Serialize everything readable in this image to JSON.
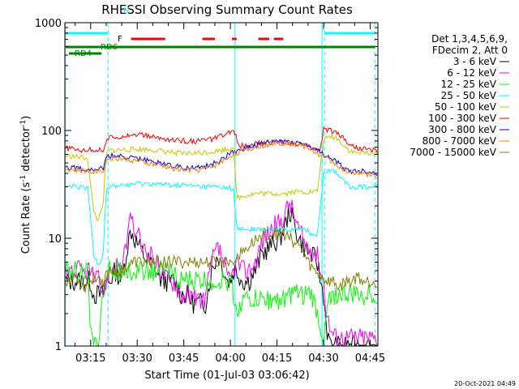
{
  "chart_data": {
    "type": "line",
    "title": "RHESSI Observing Summary Count Rates",
    "xlabel": "Start Time (01-Jul-03 03:06:42)",
    "ylabel_main": "Count Rate (s",
    "ylabel_sup1": "-1",
    "ylabel_mid": " detector",
    "ylabel_sup2": "-1",
    "ylabel_end": ")",
    "x_start_min": 186.7,
    "x_end_min": 287.5,
    "y_scale": "log",
    "ylim": [
      1,
      1000
    ],
    "x_ticks": [
      {
        "min": 195,
        "label": "03:15"
      },
      {
        "min": 210,
        "label": "03:30"
      },
      {
        "min": 225,
        "label": "03:45"
      },
      {
        "min": 240,
        "label": "04:00"
      },
      {
        "min": 255,
        "label": "04:15"
      },
      {
        "min": 270,
        "label": "04:30"
      },
      {
        "min": 285,
        "label": "04:45"
      }
    ],
    "y_ticks": [
      {
        "value": 1,
        "label": "1"
      },
      {
        "value": 10,
        "label": "10"
      },
      {
        "value": 100,
        "label": "100"
      },
      {
        "value": 1000,
        "label": "1000"
      }
    ],
    "legend": {
      "header1": "Det 1,3,4,5,6,9,",
      "header2": "FDecim 2, Att 0",
      "entries": [
        "3 - 6 keV",
        "6 - 12 keV",
        "12 - 25 keV",
        "25 - 50 keV",
        "50 - 100 keV",
        "100 - 300 keV",
        "300 - 800 keV",
        "800 - 7000 keV",
        "7000 - 15000 keV"
      ],
      "colors": [
        "#000000",
        "#ff00ff",
        "#00ff00",
        "#00ffff",
        "#c8c800",
        "#ff0000",
        "#0000ff",
        "#ff8000",
        "#808000"
      ]
    },
    "series": [
      {
        "name": "3 - 6 keV",
        "color": "#000000",
        "x": [
          187,
          190,
          193,
          195,
          196,
          197,
          198,
          199,
          200,
          201,
          203,
          205,
          206,
          207,
          208,
          209,
          210,
          211,
          212,
          214,
          216,
          218,
          220,
          222,
          224,
          226,
          228,
          230,
          232,
          234,
          235,
          236,
          237,
          238,
          239,
          240,
          241,
          242,
          244,
          246,
          248,
          250,
          252,
          254,
          256,
          258,
          259,
          260,
          262,
          264,
          266,
          268,
          269,
          270,
          271,
          272,
          273,
          274,
          276,
          278,
          280,
          282,
          284,
          286,
          287
        ],
        "y": [
          4,
          4,
          4,
          4,
          3,
          3,
          3,
          3,
          4,
          4,
          5,
          4,
          6,
          9,
          12,
          10,
          9,
          8,
          7,
          6,
          5,
          4,
          4,
          4,
          3,
          3,
          2.5,
          2.5,
          2.5,
          5,
          6,
          7,
          6,
          5,
          4,
          4,
          5,
          5,
          4,
          4,
          5,
          7,
          8,
          9,
          10,
          14,
          18,
          15,
          10,
          8,
          7,
          6,
          4,
          3,
          1.5,
          1,
          1,
          1,
          1,
          1,
          1,
          1,
          1,
          1,
          1
        ]
      },
      {
        "name": "6 - 12 keV",
        "color": "#ff00ff",
        "x": [
          187,
          190,
          193,
          195,
          196,
          197,
          198,
          199,
          200,
          201,
          203,
          205,
          206,
          207,
          208,
          209,
          210,
          211,
          212,
          214,
          216,
          218,
          220,
          222,
          224,
          226,
          228,
          230,
          232,
          234,
          235,
          236,
          237,
          238,
          239,
          240,
          241,
          242,
          244,
          246,
          248,
          250,
          252,
          254,
          256,
          258,
          259,
          260,
          262,
          264,
          266,
          268,
          269,
          270,
          271,
          272,
          273,
          274,
          276,
          278,
          280,
          282,
          284,
          286,
          287
        ],
        "y": [
          5,
          5,
          5,
          5,
          4,
          4,
          4,
          3,
          4,
          5,
          6,
          5,
          7,
          11,
          15,
          12,
          11,
          9,
          8,
          7,
          6,
          5,
          4,
          4,
          3,
          3,
          2.7,
          2.7,
          2.8,
          6,
          7,
          8,
          7,
          6,
          4,
          4,
          5,
          6,
          5,
          5,
          6,
          9,
          11,
          13,
          14,
          18,
          22,
          18,
          12,
          9,
          8,
          7,
          5,
          4,
          2,
          1.5,
          1.3,
          1.2,
          1.2,
          1.2,
          1.2,
          1.2,
          1.2,
          1.2,
          1.2
        ]
      },
      {
        "name": "12 - 25 keV",
        "color": "#00ff00",
        "x": [
          187,
          190,
          193,
          194,
          195,
          196,
          197,
          198,
          199,
          200,
          201,
          205,
          210,
          215,
          220,
          225,
          230,
          235,
          240,
          241,
          242,
          243,
          245,
          248,
          250,
          253,
          255,
          258,
          260,
          262,
          264,
          266,
          268,
          270,
          272,
          275,
          278,
          280,
          283,
          285,
          287
        ],
        "y": [
          5,
          5,
          5,
          5,
          1.2,
          1,
          1,
          1.5,
          3,
          4,
          5,
          5,
          5,
          5,
          5,
          4,
          4,
          4,
          4,
          3,
          2,
          2.5,
          2.7,
          2.7,
          2.7,
          2.7,
          2.7,
          2.8,
          3,
          3,
          3,
          3,
          2,
          1.1,
          3,
          3,
          3,
          3,
          3,
          3,
          3
        ]
      },
      {
        "name": "25 - 50 keV",
        "color": "#00ffff",
        "x": [
          187,
          190,
          193,
          194,
          195,
          196,
          197,
          198,
          199,
          200,
          201,
          205,
          210,
          215,
          220,
          225,
          230,
          235,
          240,
          241,
          242,
          243,
          245,
          248,
          250,
          253,
          255,
          258,
          260,
          262,
          264,
          266,
          268,
          270,
          272,
          274,
          276,
          278,
          280,
          283,
          285,
          287
        ],
        "y": [
          30,
          30,
          29,
          29,
          15,
          7,
          6,
          6,
          7,
          28,
          30,
          31,
          32,
          32,
          31,
          31,
          30,
          30,
          29,
          29,
          12,
          12,
          12,
          12,
          12,
          12,
          12,
          12,
          12,
          12,
          12,
          11,
          11,
          40,
          43,
          41,
          36,
          30,
          30,
          30,
          30,
          31
        ]
      },
      {
        "name": "50 - 100 keV",
        "color": "#c8c800",
        "x": [
          187,
          190,
          193,
          194,
          195,
          196,
          197,
          198,
          199,
          200,
          201,
          205,
          210,
          215,
          220,
          225,
          230,
          235,
          240,
          241,
          242,
          243,
          245,
          248,
          250,
          253,
          255,
          258,
          260,
          262,
          264,
          266,
          268,
          270,
          272,
          274,
          276,
          278,
          280,
          283,
          285,
          287
        ],
        "y": [
          58,
          57,
          56,
          56,
          30,
          18,
          15,
          16,
          20,
          60,
          65,
          66,
          67,
          66,
          63,
          61,
          62,
          64,
          68,
          72,
          24,
          24,
          25,
          26,
          26,
          26,
          26,
          26,
          27,
          27,
          27,
          27,
          27,
          80,
          88,
          86,
          76,
          66,
          62,
          62,
          62,
          63
        ]
      },
      {
        "name": "100 - 300 keV",
        "color": "#ff0000",
        "x": [
          187,
          190,
          193,
          194,
          195,
          196,
          197,
          198,
          199,
          200,
          201,
          203,
          206,
          210,
          214,
          218,
          222,
          226,
          230,
          234,
          238,
          241,
          243,
          246,
          250,
          254,
          258,
          262,
          266,
          268,
          269,
          270,
          272,
          274,
          276,
          278,
          280,
          283,
          285,
          287
        ],
        "y": [
          68,
          67,
          66,
          66,
          66,
          66,
          66,
          66,
          65,
          80,
          85,
          87,
          90,
          92,
          88,
          84,
          81,
          80,
          80,
          83,
          90,
          100,
          72,
          74,
          76,
          78,
          78,
          75,
          70,
          66,
          66,
          105,
          100,
          97,
          88,
          76,
          70,
          68,
          66,
          66
        ]
      },
      {
        "name": "300 - 800 keV",
        "color": "#0000ff",
        "x": [
          187,
          190,
          193,
          194,
          195,
          196,
          197,
          198,
          199,
          200,
          201,
          203,
          206,
          210,
          214,
          218,
          222,
          226,
          230,
          234,
          238,
          241,
          243,
          246,
          250,
          254,
          258,
          262,
          266,
          268,
          269,
          270,
          272,
          274,
          276,
          278,
          280,
          283,
          285,
          287
        ],
        "y": [
          46,
          45,
          44,
          44,
          44,
          44,
          44,
          44,
          44,
          55,
          58,
          58,
          57,
          55,
          52,
          50,
          47,
          45,
          45,
          48,
          56,
          64,
          66,
          70,
          75,
          79,
          80,
          77,
          70,
          64,
          62,
          60,
          56,
          52,
          46,
          42,
          42,
          42,
          41,
          40
        ]
      },
      {
        "name": "800 - 7000 keV",
        "color": "#ff8000",
        "x": [
          187,
          190,
          193,
          194,
          195,
          196,
          197,
          198,
          199,
          200,
          201,
          203,
          206,
          210,
          214,
          218,
          222,
          226,
          230,
          234,
          238,
          241,
          243,
          246,
          250,
          254,
          258,
          262,
          266,
          268,
          269,
          270,
          272,
          274,
          276,
          278,
          280,
          283,
          285,
          287
        ],
        "y": [
          44,
          43,
          42,
          42,
          42,
          42,
          42,
          42,
          42,
          52,
          55,
          55,
          54,
          52,
          49,
          47,
          44,
          43,
          43,
          46,
          53,
          61,
          63,
          67,
          72,
          76,
          77,
          74,
          67,
          61,
          59,
          57,
          53,
          49,
          44,
          40,
          40,
          40,
          39,
          38
        ]
      },
      {
        "name": "7000 - 15000 keV",
        "color": "#808000",
        "x": [
          187,
          190,
          193,
          195,
          197,
          199,
          201,
          203,
          205,
          207,
          209,
          211,
          213,
          215,
          217,
          219,
          221,
          223,
          225,
          227,
          229,
          231,
          233,
          235,
          237,
          239,
          241,
          243,
          245,
          247,
          249,
          251,
          253,
          255,
          257,
          259,
          261,
          263,
          265,
          267,
          269,
          271,
          273,
          275,
          277,
          279,
          281,
          283,
          285,
          287
        ],
        "y": [
          4,
          4.5,
          3.5,
          4,
          4.5,
          4,
          5,
          5,
          5,
          5.5,
          6,
          6,
          6,
          6,
          6,
          6,
          6,
          6,
          6,
          6,
          6,
          6,
          6,
          6,
          6,
          6,
          6.5,
          7,
          8,
          9,
          10,
          11,
          11,
          11,
          11,
          10,
          9,
          8,
          6,
          5,
          4.5,
          4,
          4,
          3.5,
          4,
          4,
          4.5,
          4,
          4,
          4
        ]
      }
    ],
    "annotations": {
      "n_label": "N",
      "f_label": "F",
      "rd4_label": "RD4",
      "rd6_label": "RD6",
      "night_bars": [
        [
          186.7,
          200.6
        ],
        [
          270.3,
          286.5
        ]
      ],
      "night_markers": [
        200.6,
        270.3,
        286.5
      ],
      "flare_segments": [
        [
          208,
          219
        ],
        [
          231,
          235
        ],
        [
          240.5,
          242
        ],
        [
          249,
          252.5
        ],
        [
          254,
          257
        ]
      ],
      "rd4_bars": [
        [
          188,
          191.5
        ],
        [
          191.5,
          198.5
        ]
      ],
      "rd6_bars": [
        [
          187,
          203
        ],
        [
          203,
          241.5
        ],
        [
          241.5,
          258
        ],
        [
          258,
          269.5
        ],
        [
          269.5,
          286.5
        ]
      ],
      "saa_lines": [
        186.8,
        241.5,
        269.5
      ]
    },
    "colors": {
      "night": "#00ffff",
      "flare": "#ff0000",
      "decim": "#008000"
    }
  },
  "footer": {
    "timestamp": "20-Oct-2021 04:49"
  }
}
